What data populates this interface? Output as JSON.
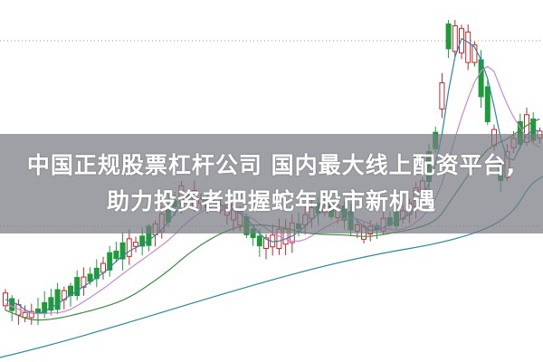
{
  "headline": {
    "line1": "中国正规股票杠杆公司 国内最大线上配资平台,",
    "line2": "助力投资者把握蛇年股市新机遇"
  },
  "colors": {
    "up_candle": "#c0282d",
    "down_candle": "#1f9a3a",
    "ma_short": "#2a86a8",
    "ma_mid": "#c78ad6",
    "ma_long": "#3f8a3f",
    "ma_longest": "#2a8a9a",
    "overlay": "#787c84"
  }
}
